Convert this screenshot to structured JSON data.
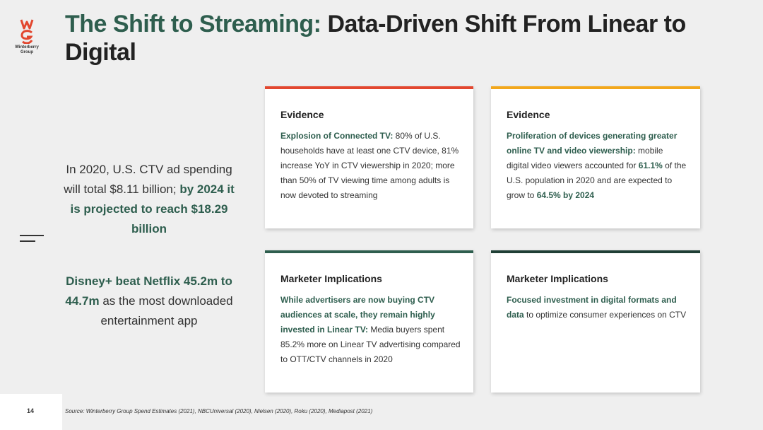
{
  "logo": {
    "text_line1": "Winterberry",
    "text_line2": "Group"
  },
  "title": {
    "accent": "The Shift to Streaming:",
    "rest": " Data-Driven Shift From Linear to Digital"
  },
  "stats": {
    "stat1_plain": "In 2020, U.S. CTV ad spending will total $8.11 billion;",
    "stat1_bold": "by 2024 it is projected to reach $18.29 billion",
    "stat2_bold": "Disney+ beat Netflix 45.2m to 44.7m",
    "stat2_plain": " as the most downloaded entertainment app"
  },
  "cards": [
    {
      "heading": "Evidence",
      "bold": "Explosion of Connected TV:",
      "text": " 80% of U.S. households have at least one CTV device, 81% increase YoY in CTV viewership in 2020; more than 50% of TV viewing time among adults is now devoted to streaming"
    },
    {
      "heading": "Evidence",
      "bold": "Proliferation of devices generating greater online TV and video viewership:",
      "text_a": " mobile digital video viewers accounted for ",
      "bold_b": "61.1%",
      "text_c": " of the U.S. population in 2020 and are expected to grow to ",
      "bold_d": "64.5% by 2024"
    },
    {
      "heading": "Marketer Implications",
      "bold": "While advertisers are now buying CTV audiences at scale, they remain highly invested in Linear TV:",
      "text": " Media buyers spent 85.2% more on Linear TV advertising compared to OTT/CTV channels in 2020"
    },
    {
      "heading": "Marketer Implications",
      "bold": "Focused investment in digital formats and data",
      "text": " to optimize consumer experiences on CTV"
    }
  ],
  "footer": {
    "page_number": "14",
    "source": "Source: Winterberry Group Spend Estimates (2021), NBCUniversal (2020), Nielsen (2020), Roku (2020), Mediapost (2021)"
  },
  "colors": {
    "accent": "#2e5e4e",
    "red": "#e2472f",
    "orange": "#f2a71c",
    "dark_green": "#1f3f35"
  }
}
